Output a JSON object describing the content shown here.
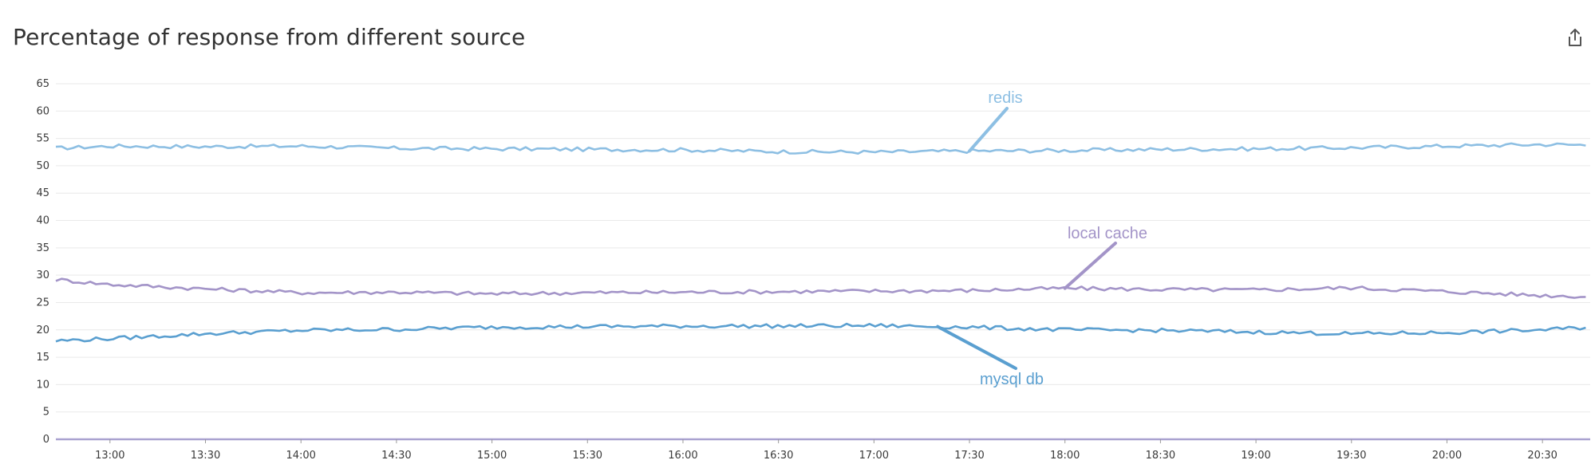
{
  "header": {
    "title": "Percentage of response from different source",
    "share_icon": "share-icon"
  },
  "chart_data": {
    "type": "line",
    "title": "Percentage of response from different source",
    "xlabel": "",
    "ylabel": "",
    "x_range": [
      "12:43",
      "20:45"
    ],
    "x_ticks": [
      "13:00",
      "13:30",
      "14:00",
      "14:30",
      "15:00",
      "15:30",
      "16:00",
      "16:30",
      "17:00",
      "17:30",
      "18:00",
      "18:30",
      "19:00",
      "19:30",
      "20:00",
      "20:30"
    ],
    "ylim": [
      0,
      65
    ],
    "y_ticks": [
      0,
      5,
      10,
      15,
      20,
      25,
      30,
      35,
      40,
      45,
      50,
      55,
      60,
      65
    ],
    "grid": true,
    "legend": "none",
    "series": [
      {
        "name": "redis",
        "color": "#8dbfe3",
        "x": [
          "12:43",
          "13:00",
          "13:30",
          "14:00",
          "14:30",
          "15:00",
          "15:30",
          "16:00",
          "16:30",
          "17:00",
          "17:30",
          "18:00",
          "18:30",
          "19:00",
          "19:30",
          "20:00",
          "20:30",
          "20:45"
        ],
        "values": [
          53.2,
          53.6,
          53.5,
          53.6,
          53.2,
          53.1,
          53.0,
          52.9,
          52.6,
          52.5,
          52.7,
          52.8,
          53.0,
          53.1,
          53.3,
          53.6,
          53.9,
          53.8
        ]
      },
      {
        "name": "local cache",
        "color": "#a394c8",
        "x": [
          "12:43",
          "13:00",
          "13:30",
          "14:00",
          "14:30",
          "15:00",
          "15:30",
          "16:00",
          "16:30",
          "17:00",
          "17:30",
          "18:00",
          "18:30",
          "19:00",
          "19:30",
          "20:00",
          "20:30",
          "20:45"
        ],
        "values": [
          29.2,
          28.3,
          27.5,
          26.8,
          26.9,
          26.6,
          26.8,
          26.9,
          27.0,
          27.1,
          27.2,
          27.6,
          27.4,
          27.3,
          27.7,
          27.0,
          26.3,
          26.1
        ]
      },
      {
        "name": "mysql db",
        "color": "#5a9fd0",
        "x": [
          "12:43",
          "13:00",
          "13:30",
          "14:00",
          "14:30",
          "15:00",
          "15:30",
          "16:00",
          "16:30",
          "17:00",
          "17:30",
          "18:00",
          "18:30",
          "19:00",
          "19:30",
          "20:00",
          "20:30",
          "20:45"
        ],
        "values": [
          18.0,
          18.4,
          19.3,
          19.9,
          20.1,
          20.5,
          20.6,
          20.7,
          20.7,
          20.8,
          20.5,
          20.0,
          19.9,
          19.6,
          19.3,
          19.5,
          20.0,
          20.5
        ]
      }
    ]
  }
}
